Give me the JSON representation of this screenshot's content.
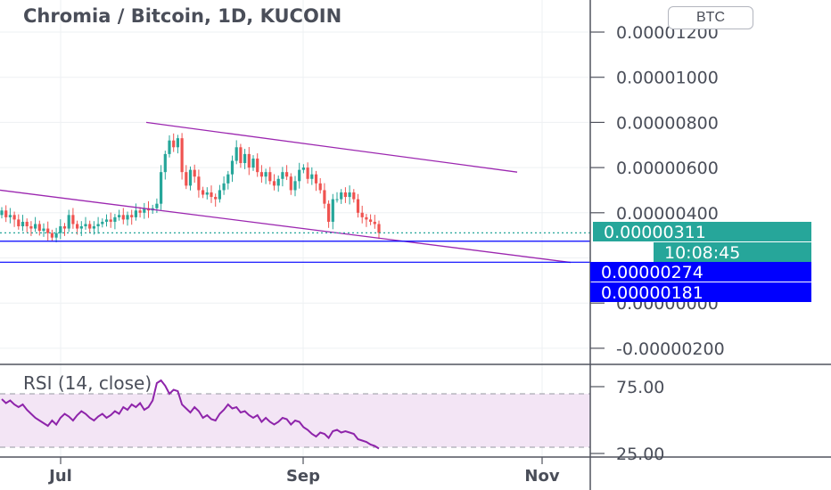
{
  "header": {
    "title": "Chromia / Bitcoin, 1D, KUCOIN",
    "currency_button": "BTC"
  },
  "price_axis": {
    "ticks": [
      "0.00001200",
      "0.00001000",
      "0.00000800",
      "0.00000600",
      "0.00000400",
      "0.0",
      "0.00000000",
      "-0.00000200"
    ]
  },
  "price_labels": {
    "last_price": "0.00000311",
    "countdown": "10:08:45",
    "line_upper": "0.00000274",
    "line_lower": "0.00000181"
  },
  "rsi": {
    "label": "RSI (14, close)",
    "ticks": [
      "75.00",
      "25.00"
    ]
  },
  "time_axis": {
    "ticks": [
      "Jul",
      "Sep",
      "Nov"
    ]
  },
  "colors": {
    "up": "#26a69a",
    "down": "#ef5350",
    "trendline": "#9c27b0",
    "horizontal_line": "#0000ff",
    "rsi_line": "#8e24aa",
    "rsi_band": "#f3e5f5",
    "last_price_tag": "#26a69a"
  },
  "chart_data": {
    "type": "candlestick",
    "title": "Chromia / Bitcoin, 1D, KUCOIN",
    "symbol": "Chromia / Bitcoin",
    "interval": "1D",
    "exchange": "KUCOIN",
    "y_range": [
      -3e-06,
      1.25e-05
    ],
    "close": [
      4.1e-06,
      3.8e-06,
      3.9e-06,
      3.7e-06,
      3.4e-06,
      3.6e-06,
      3.4e-06,
      3.3e-06,
      3.5e-06,
      3.2e-06,
      3.3e-06,
      3.1e-06,
      2.9e-06,
      3.1e-06,
      3.4e-06,
      3.3e-06,
      3.9e-06,
      3.5e-06,
      3.3e-06,
      3.4e-06,
      3.5e-06,
      3.3e-06,
      3.4e-06,
      3.5e-06,
      3.6e-06,
      3.7e-06,
      3.6e-06,
      3.8e-06,
      3.9e-06,
      3.7e-06,
      3.9e-06,
      3.8e-06,
      4.1e-06,
      4e-06,
      4.2e-06,
      4.1e-06,
      4.2e-06,
      4.4e-06,
      5.8e-06,
      6.6e-06,
      7.2e-06,
      6.9e-06,
      7.3e-06,
      5.8e-06,
      5.2e-06,
      5.9e-06,
      5.6e-06,
      5e-06,
      4.8e-06,
      4.9e-06,
      4.7e-06,
      4.6e-06,
      5e-06,
      5.3e-06,
      5.7e-06,
      6.3e-06,
      6.9e-06,
      6.2e-06,
      6.6e-06,
      6e-06,
      6.4e-06,
      5.8e-06,
      5.6e-06,
      5.8e-06,
      5.4e-06,
      5.2e-06,
      5.5e-06,
      5.8e-06,
      5.6e-06,
      5e-06,
      5.4e-06,
      5.9e-06,
      6e-06,
      5.5e-06,
      5.7e-06,
      5.3e-06,
      5e-06,
      4.4e-06,
      3.6e-06,
      4.6e-06,
      4.6e-06,
      4.9e-06,
      4.7e-06,
      4.9e-06,
      4.6e-06,
      4e-06,
      3.8e-06,
      3.7e-06,
      3.6e-06,
      3.5e-06,
      3.11e-06
    ],
    "trendlines": [
      {
        "from": [
          164,
          8e-06
        ],
        "to": [
          580,
          5.8e-06
        ]
      },
      {
        "from": [
          0,
          5e-06
        ],
        "to": [
          640,
          1.8e-06
        ]
      }
    ],
    "horizontal_lines": [
      2.74e-06,
      1.81e-06
    ],
    "last_price": 3.11e-06,
    "rsi": {
      "period": 14,
      "source": "close",
      "levels": [
        70,
        30
      ],
      "range": [
        20,
        80
      ],
      "values": [
        66,
        63,
        65,
        62,
        60,
        62,
        58,
        55,
        52,
        50,
        48,
        46,
        50,
        47,
        52,
        55,
        53,
        50,
        54,
        57,
        55,
        52,
        50,
        53,
        55,
        52,
        54,
        57,
        55,
        60,
        58,
        62,
        60,
        63,
        58,
        60,
        65,
        78,
        80,
        76,
        70,
        73,
        72,
        62,
        59,
        56,
        60,
        57,
        52,
        54,
        51,
        50,
        55,
        58,
        62,
        59,
        60,
        56,
        57,
        54,
        52,
        54,
        49,
        52,
        49,
        47,
        49,
        52,
        51,
        47,
        50,
        49,
        45,
        43,
        40,
        38,
        41,
        40,
        37,
        42,
        43,
        41,
        42,
        41,
        40,
        36,
        35,
        34,
        32,
        31,
        29
      ]
    },
    "x_ticks": [
      "Jul",
      "Sep",
      "Nov"
    ]
  }
}
